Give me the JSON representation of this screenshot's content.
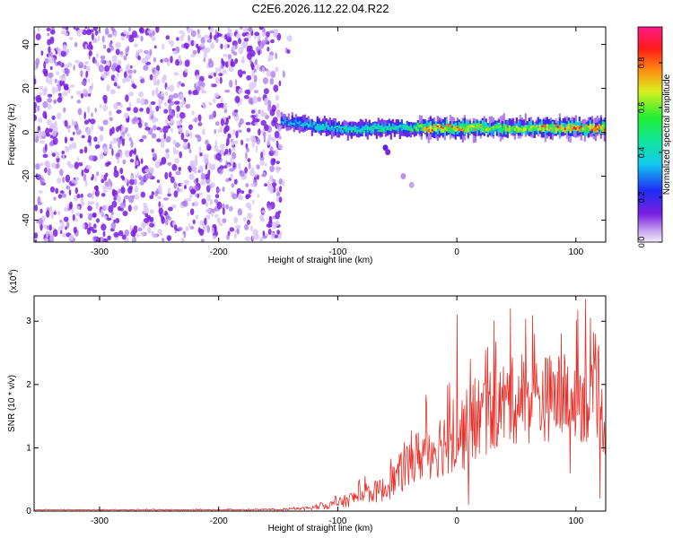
{
  "title": "C2E6.2026.112.22.04.R22",
  "colors": {
    "snr_line": "#e8302a",
    "spectrogram_noise": "#8a2be2",
    "background": "#ffffff"
  },
  "chart_data": [
    {
      "type": "heatmap",
      "name": "spectrogram",
      "xlabel": "Height of straight line (km)",
      "ylabel": "Frequency (Hz)",
      "xlim": [
        -355,
        125
      ],
      "ylim": [
        -50,
        48
      ],
      "xticks": [
        -300,
        -200,
        -100,
        0,
        100
      ],
      "yticks": [
        40,
        20,
        0,
        -20,
        -40
      ],
      "colorbar": {
        "label": "Normalized spectral amplitude",
        "range": [
          0,
          0.96
        ],
        "ticks": [
          "0.0",
          "0.2",
          "0.4",
          "0.6",
          "0.8"
        ]
      },
      "noise_region": {
        "x_from": -355,
        "x_to": -148,
        "typical_amplitude": 0.08
      },
      "signal_ridge": {
        "x_from": -148,
        "x_to": 125,
        "centre_freq_points": [
          [
            -148,
            5
          ],
          [
            -120,
            3
          ],
          [
            -90,
            1
          ],
          [
            -60,
            2
          ],
          [
            -40,
            2
          ],
          [
            -20,
            2
          ],
          [
            0,
            2
          ],
          [
            40,
            2
          ],
          [
            80,
            2
          ],
          [
            120,
            2
          ]
        ],
        "peak_amplitude_points": [
          [
            -148,
            0.35
          ],
          [
            -120,
            0.45
          ],
          [
            -80,
            0.5
          ],
          [
            -40,
            0.55
          ],
          [
            -20,
            0.88
          ],
          [
            0,
            0.82
          ],
          [
            40,
            0.72
          ],
          [
            80,
            0.82
          ],
          [
            120,
            0.9
          ]
        ]
      }
    },
    {
      "type": "line",
      "name": "snr",
      "xlabel": "Height of straight line (km)",
      "ylabel": "SNR (10 * v/v)",
      "yscale_label": "(x10",
      "yscale_exp": "4",
      "xlim": [
        -355,
        125
      ],
      "ylim": [
        0,
        3.4
      ],
      "xticks": [
        -300,
        -200,
        -100,
        0,
        100
      ],
      "yticks": [
        0,
        1,
        2,
        3
      ],
      "series": [
        {
          "name": "SNR",
          "envelope_x": [
            -355,
            -150,
            -120,
            -100,
            -80,
            -60,
            -50,
            -40,
            -30,
            -20,
            -10,
            0,
            10,
            20,
            30,
            40,
            50,
            60,
            80,
            100,
            110,
            120,
            125
          ],
          "envelope_mean": [
            0.02,
            0.02,
            0.05,
            0.12,
            0.25,
            0.35,
            0.55,
            0.75,
            0.9,
            1.0,
            1.1,
            1.2,
            1.3,
            1.5,
            1.6,
            1.7,
            1.75,
            1.75,
            1.8,
            1.8,
            1.75,
            1.5,
            1.4
          ],
          "envelope_spread": [
            0.005,
            0.01,
            0.03,
            0.08,
            0.15,
            0.2,
            0.3,
            0.4,
            0.45,
            0.5,
            0.55,
            0.6,
            0.65,
            0.7,
            0.7,
            0.7,
            0.7,
            0.7,
            0.7,
            0.7,
            0.7,
            0.6,
            0.6
          ],
          "peaks": [
            [
              0,
              3.1
            ],
            [
              45,
              3.2
            ],
            [
              108,
              3.35
            ],
            [
              112,
              3.05
            ]
          ],
          "dips": [
            [
              10,
              0.1
            ],
            [
              95,
              0.6
            ],
            [
              120,
              0.2
            ]
          ]
        }
      ]
    }
  ]
}
